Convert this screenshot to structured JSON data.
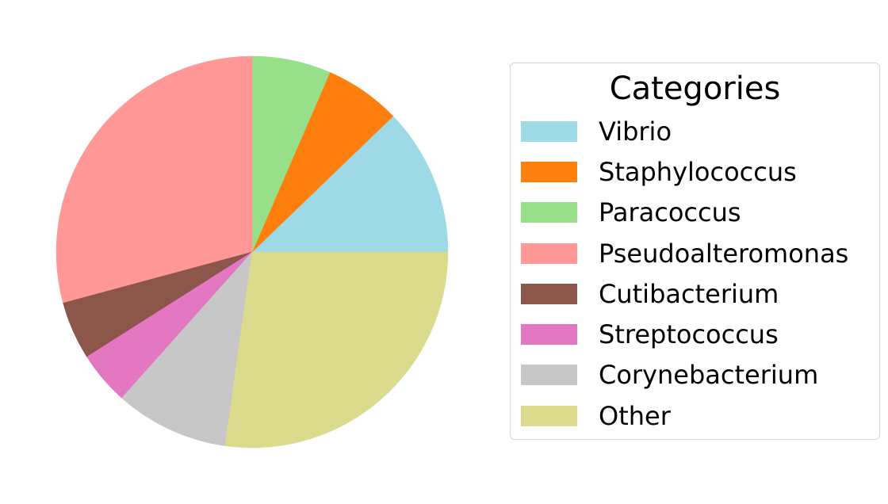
{
  "chart_data": {
    "type": "pie",
    "title": "",
    "legend": {
      "title": "Categories",
      "placement": "right"
    },
    "start_angle_deg": 0,
    "direction": "counterclockwise",
    "slices": [
      {
        "label": "Vibrio",
        "value": 12.2,
        "color": "#9edae5"
      },
      {
        "label": "Staphylococcus",
        "value": 6.3,
        "color": "#ff7f0e"
      },
      {
        "label": "Paracoccus",
        "value": 6.5,
        "color": "#98df8a"
      },
      {
        "label": "Pseudoalteromonas",
        "value": 29.2,
        "color": "#ff9896"
      },
      {
        "label": "Cutibacterium",
        "value": 4.8,
        "color": "#8c564b"
      },
      {
        "label": "Streptococcus",
        "value": 4.4,
        "color": "#e377c2"
      },
      {
        "label": "Corynebacterium",
        "value": 9.4,
        "color": "#c7c7c7"
      },
      {
        "label": "Other",
        "value": 27.2,
        "color": "#dbdb8d"
      }
    ]
  }
}
